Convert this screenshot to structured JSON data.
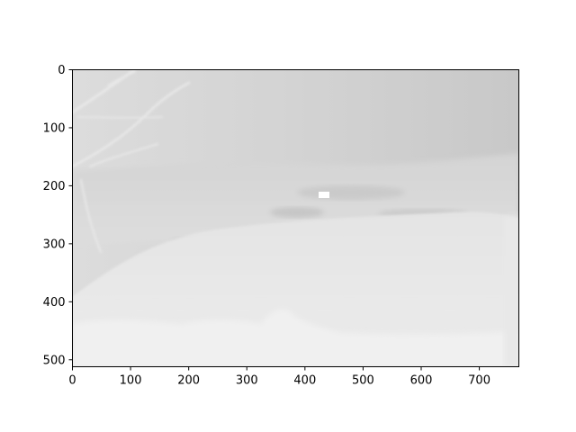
{
  "figure": {
    "image_extent": {
      "x": [
        0,
        768
      ],
      "y": [
        0,
        512
      ]
    },
    "x_ticks": [
      0,
      100,
      200,
      300,
      400,
      500,
      600,
      700
    ],
    "y_ticks": [
      0,
      100,
      200,
      300,
      400,
      500
    ],
    "y_axis_inverted": true,
    "colormap": "gray"
  }
}
